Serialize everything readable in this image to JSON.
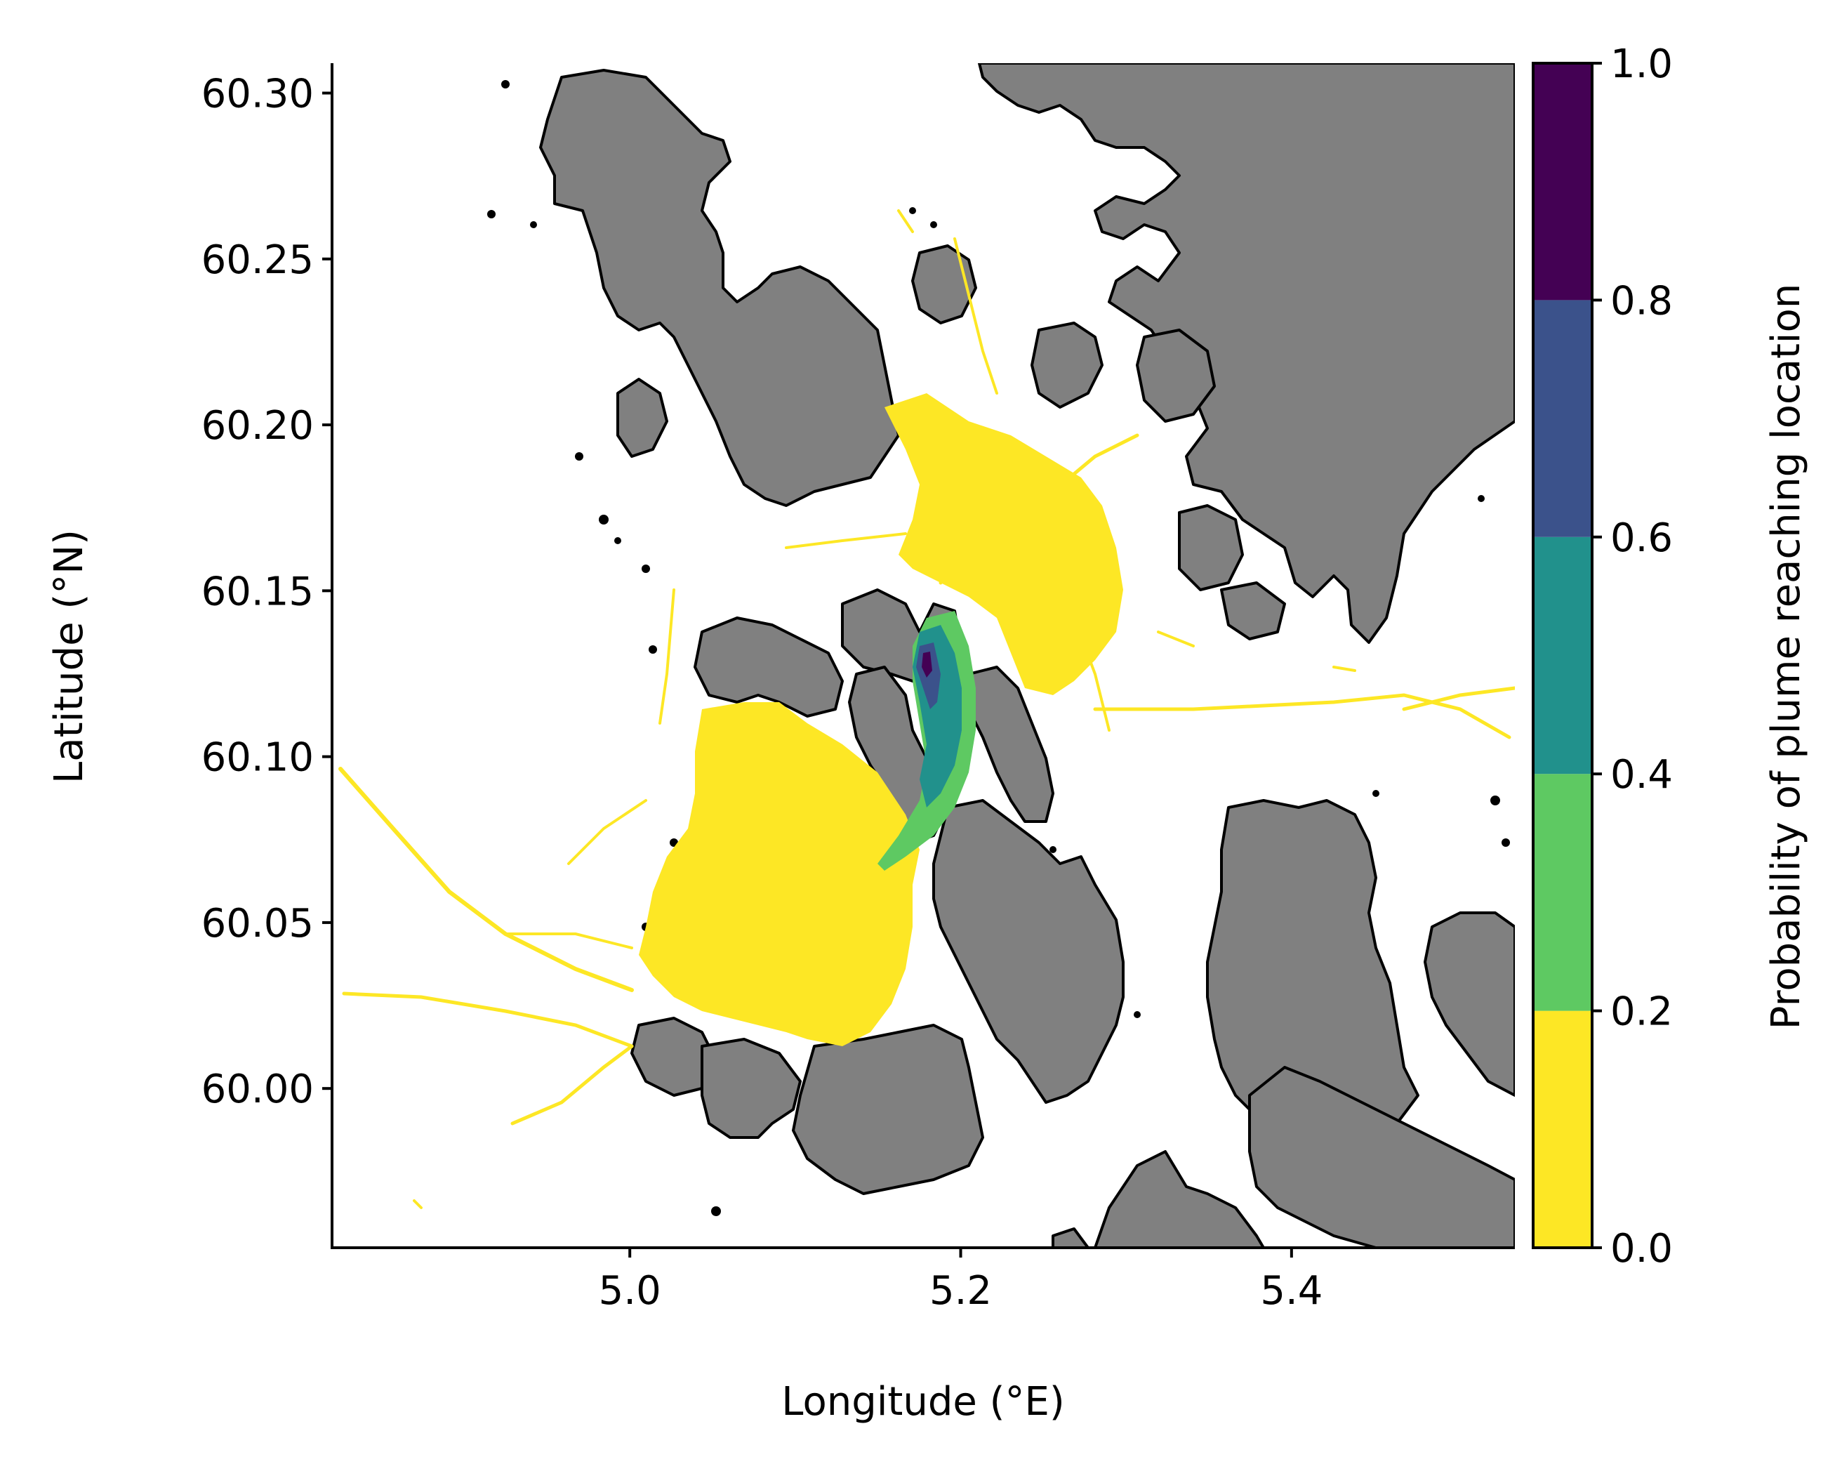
{
  "map": {
    "xlabel": "Longitude (°E)",
    "ylabel": "Latitude (°N)",
    "xlim": [
      4.82,
      5.535
    ],
    "ylim": [
      59.952,
      60.309
    ],
    "x_ticks": [
      {
        "value": 5.0,
        "label": "5.0"
      },
      {
        "value": 5.2,
        "label": "5.2"
      },
      {
        "value": 5.4,
        "label": "5.4"
      }
    ],
    "y_ticks": [
      {
        "value": 60.0,
        "label": "60.00"
      },
      {
        "value": 60.05,
        "label": "60.05"
      },
      {
        "value": 60.1,
        "label": "60.10"
      },
      {
        "value": 60.15,
        "label": "60.15"
      },
      {
        "value": 60.2,
        "label": "60.20"
      },
      {
        "value": 60.25,
        "label": "60.25"
      },
      {
        "value": 60.3,
        "label": "60.30"
      }
    ],
    "land_color": "#808080",
    "coastline_color": "#000000"
  },
  "colorbar": {
    "label": "Probability of plume reaching location",
    "ticks": [
      {
        "value": 0.0,
        "label": "0.0"
      },
      {
        "value": 0.2,
        "label": "0.2"
      },
      {
        "value": 0.4,
        "label": "0.4"
      },
      {
        "value": 0.6,
        "label": "0.6"
      },
      {
        "value": 0.8,
        "label": "0.8"
      },
      {
        "value": 1.0,
        "label": "1.0"
      }
    ],
    "bins": [
      {
        "from": 0.0,
        "to": 0.2,
        "color": "#fde725"
      },
      {
        "from": 0.2,
        "to": 0.4,
        "color": "#5ec962"
      },
      {
        "from": 0.4,
        "to": 0.6,
        "color": "#21918c"
      },
      {
        "from": 0.6,
        "to": 0.8,
        "color": "#3b528b"
      },
      {
        "from": 0.8,
        "to": 1.0,
        "color": "#440154"
      }
    ]
  }
}
